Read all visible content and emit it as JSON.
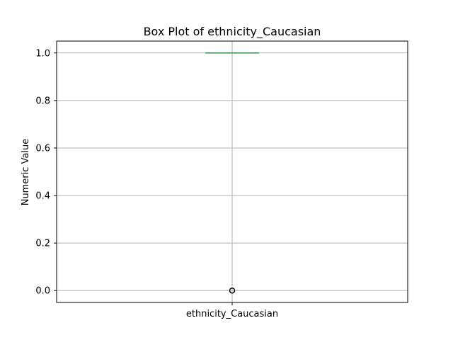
{
  "chart_data": {
    "type": "box",
    "title": "Box Plot of ethnicity_Caucasian",
    "xlabel": "",
    "ylabel": "Numeric Value",
    "categories": [
      "ethnicity_Caucasian"
    ],
    "ylim": [
      -0.05,
      1.05
    ],
    "yticks": [
      0.0,
      0.2,
      0.4,
      0.6,
      0.8,
      1.0
    ],
    "ytick_labels": [
      "0.0",
      "0.2",
      "0.4",
      "0.6",
      "0.8",
      "1.0"
    ],
    "grid": true,
    "boxes": [
      {
        "name": "ethnicity_Caucasian",
        "min": 1.0,
        "q1": 1.0,
        "median": 1.0,
        "q3": 1.0,
        "max": 1.0,
        "outliers": [
          0.0
        ]
      }
    ],
    "colors": {
      "box": "#1f77b4",
      "median": "#2ca02c",
      "whisker": "#1f77b4",
      "cap": "#2ca02c",
      "outlier": "#000000",
      "grid": "#b0b0b0"
    }
  }
}
